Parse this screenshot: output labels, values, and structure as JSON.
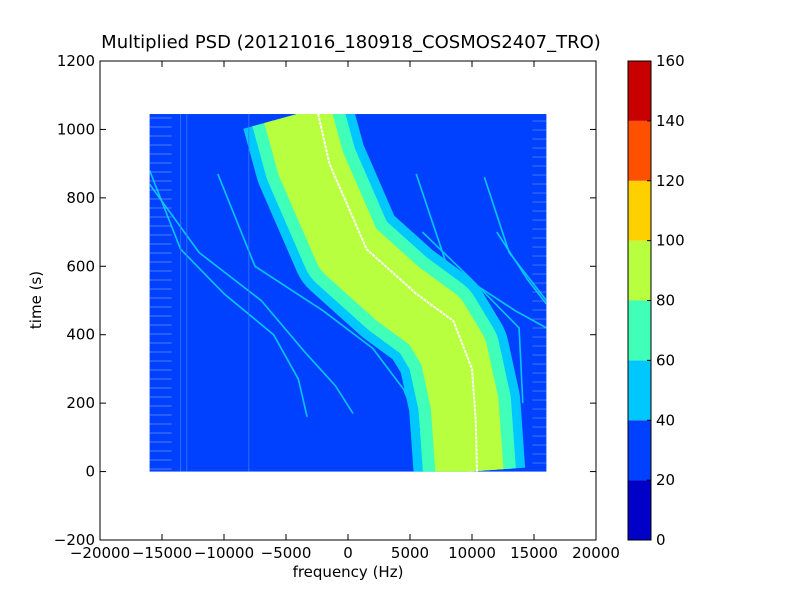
{
  "chart_data": {
    "type": "heatmap",
    "title": "Multiplied PSD (20121016_180918_COSMOS2407_TRO)",
    "xlabel": "frequency (Hz)",
    "ylabel": "time (s)",
    "xlim": [
      -20000,
      20000
    ],
    "ylim": [
      -200,
      1200
    ],
    "x_ticks": [
      "−20000",
      "−15000",
      "−10000",
      "−5000",
      "0",
      "5000",
      "10000",
      "15000",
      "20000"
    ],
    "y_ticks": [
      "−200",
      "0",
      "200",
      "400",
      "600",
      "800",
      "1000",
      "1200"
    ],
    "data_extent": {
      "x": [
        -16000,
        16000
      ],
      "y": [
        0,
        1045
      ]
    },
    "background_level": 30,
    "colorbar": {
      "range": [
        0,
        160
      ],
      "ticks": [
        "0",
        "20",
        "40",
        "60",
        "80",
        "100",
        "120",
        "140",
        "160"
      ],
      "levels": [
        {
          "from": 0,
          "to": 20,
          "color": "#0000c8"
        },
        {
          "from": 20,
          "to": 40,
          "color": "#0040ff"
        },
        {
          "from": 40,
          "to": 60,
          "color": "#00c8ff"
        },
        {
          "from": 60,
          "to": 80,
          "color": "#40ffb8"
        },
        {
          "from": 80,
          "to": 100,
          "color": "#b8ff40"
        },
        {
          "from": 100,
          "to": 120,
          "color": "#ffd000"
        },
        {
          "from": 120,
          "to": 140,
          "color": "#ff5000"
        },
        {
          "from": 140,
          "to": 160,
          "color": "#c80000"
        }
      ]
    },
    "main_band": {
      "description_free": true,
      "center": [
        [
          -4100,
          1045
        ],
        [
          -3000,
          900
        ],
        [
          0,
          650
        ],
        [
          4000,
          520
        ],
        [
          7000,
          440
        ],
        [
          8500,
          350
        ],
        [
          9400,
          200
        ],
        [
          9800,
          0
        ]
      ],
      "bright_line": [
        [
          -2400,
          1045
        ],
        [
          -1500,
          900
        ],
        [
          1500,
          650
        ],
        [
          5500,
          520
        ],
        [
          8500,
          440
        ],
        [
          10000,
          300
        ],
        [
          10300,
          150
        ],
        [
          10400,
          0
        ]
      ],
      "layers": [
        {
          "half_width": 9000,
          "level": 50
        },
        {
          "half_width": 7500,
          "level": 70
        },
        {
          "half_width": 5500,
          "level": 90
        }
      ]
    },
    "faint_traces": [
      [
        [
          -16000,
          880
        ],
        [
          -13500,
          650
        ],
        [
          -10000,
          520
        ],
        [
          -6000,
          400
        ],
        [
          -4000,
          270
        ],
        [
          -3300,
          160
        ]
      ],
      [
        [
          -10500,
          870
        ],
        [
          -7500,
          600
        ],
        [
          -2000,
          470
        ],
        [
          2000,
          360
        ],
        [
          4500,
          240
        ],
        [
          5800,
          120
        ]
      ],
      [
        [
          -16000,
          840
        ],
        [
          -12000,
          640
        ],
        [
          -7000,
          500
        ],
        [
          -3500,
          350
        ],
        [
          -1000,
          250
        ],
        [
          400,
          170
        ]
      ],
      [
        [
          5500,
          870
        ],
        [
          8000,
          600
        ],
        [
          13500,
          470
        ],
        [
          16000,
          420
        ]
      ],
      [
        [
          11000,
          860
        ],
        [
          13000,
          640
        ],
        [
          16000,
          500
        ]
      ],
      [
        [
          12000,
          700
        ],
        [
          14500,
          560
        ],
        [
          16000,
          490
        ]
      ],
      [
        [
          6000,
          700
        ],
        [
          10000,
          560
        ],
        [
          13800,
          420
        ],
        [
          14100,
          200
        ]
      ]
    ],
    "vertical_lines": [
      -13500,
      -13000,
      -8000
    ],
    "grid": false,
    "legend": "colorbar-right"
  }
}
